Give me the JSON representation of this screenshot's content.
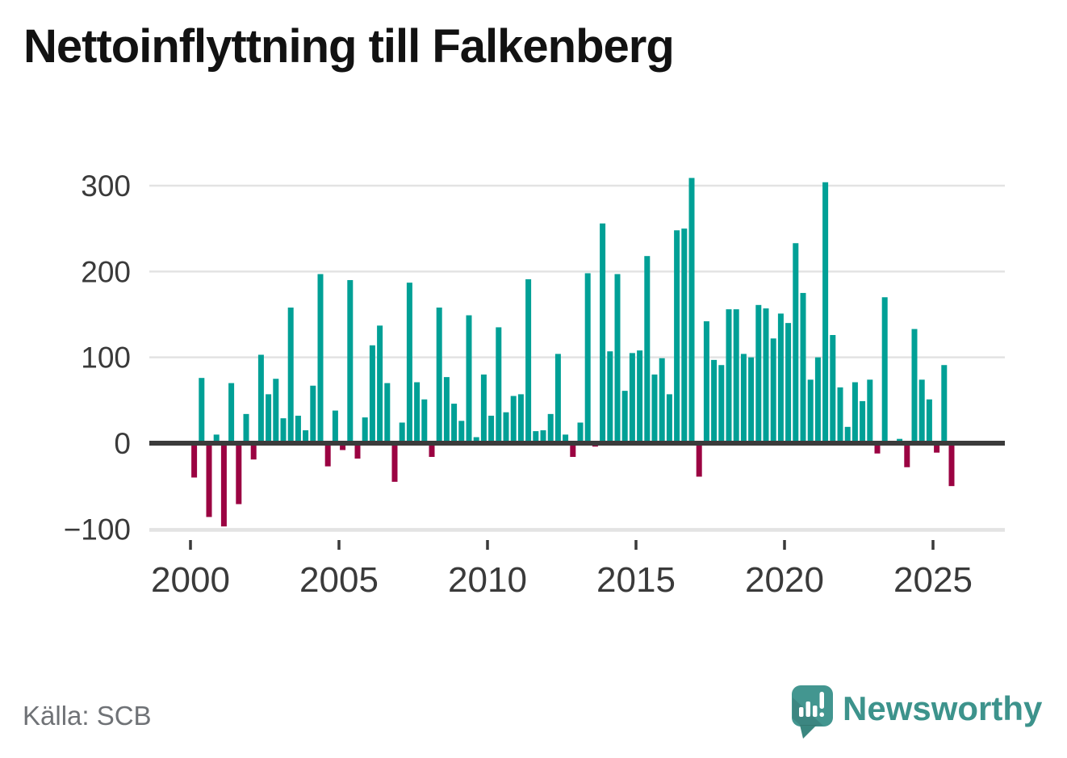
{
  "chart_data": {
    "type": "bar",
    "title": "Nettoinflyttning till Falkenberg",
    "start": "2000 Q1",
    "frequency": "quarterly",
    "values": [
      -40,
      76,
      -86,
      10,
      -97,
      70,
      -71,
      34,
      -19,
      103,
      57,
      75,
      29,
      158,
      32,
      15,
      67,
      197,
      -27,
      38,
      -8,
      190,
      -18,
      30,
      114,
      137,
      70,
      -45,
      24,
      187,
      71,
      51,
      -16,
      158,
      77,
      46,
      26,
      149,
      7,
      80,
      32,
      135,
      36,
      55,
      57,
      191,
      14,
      15,
      34,
      104,
      10,
      -16,
      24,
      198,
      -4,
      256,
      107,
      197,
      61,
      105,
      108,
      218,
      80,
      99,
      57,
      248,
      250,
      309,
      -39,
      142,
      97,
      91,
      156,
      156,
      104,
      100,
      161,
      157,
      122,
      151,
      140,
      233,
      175,
      74,
      100,
      304,
      126,
      65,
      19,
      71,
      49,
      74,
      -12,
      170,
      0,
      5,
      -28,
      133,
      74,
      51,
      -11,
      91,
      -50
    ],
    "yticks": [
      300,
      200,
      100,
      0,
      -100
    ],
    "xticks": [
      2000,
      2005,
      2010,
      2015,
      2020,
      2025
    ],
    "ylim": [
      -100,
      320
    ],
    "grid": true,
    "legend": false,
    "colors": {
      "positive": "#00a096",
      "negative": "#9b0342",
      "zero_line": "#3b3b3b",
      "grid": "#e3e3e3",
      "axis_text": "#3a3a3a"
    }
  },
  "footer": {
    "source": "Källa: SCB",
    "brand": "Newsworthy",
    "brand_color": "#3d938c"
  }
}
